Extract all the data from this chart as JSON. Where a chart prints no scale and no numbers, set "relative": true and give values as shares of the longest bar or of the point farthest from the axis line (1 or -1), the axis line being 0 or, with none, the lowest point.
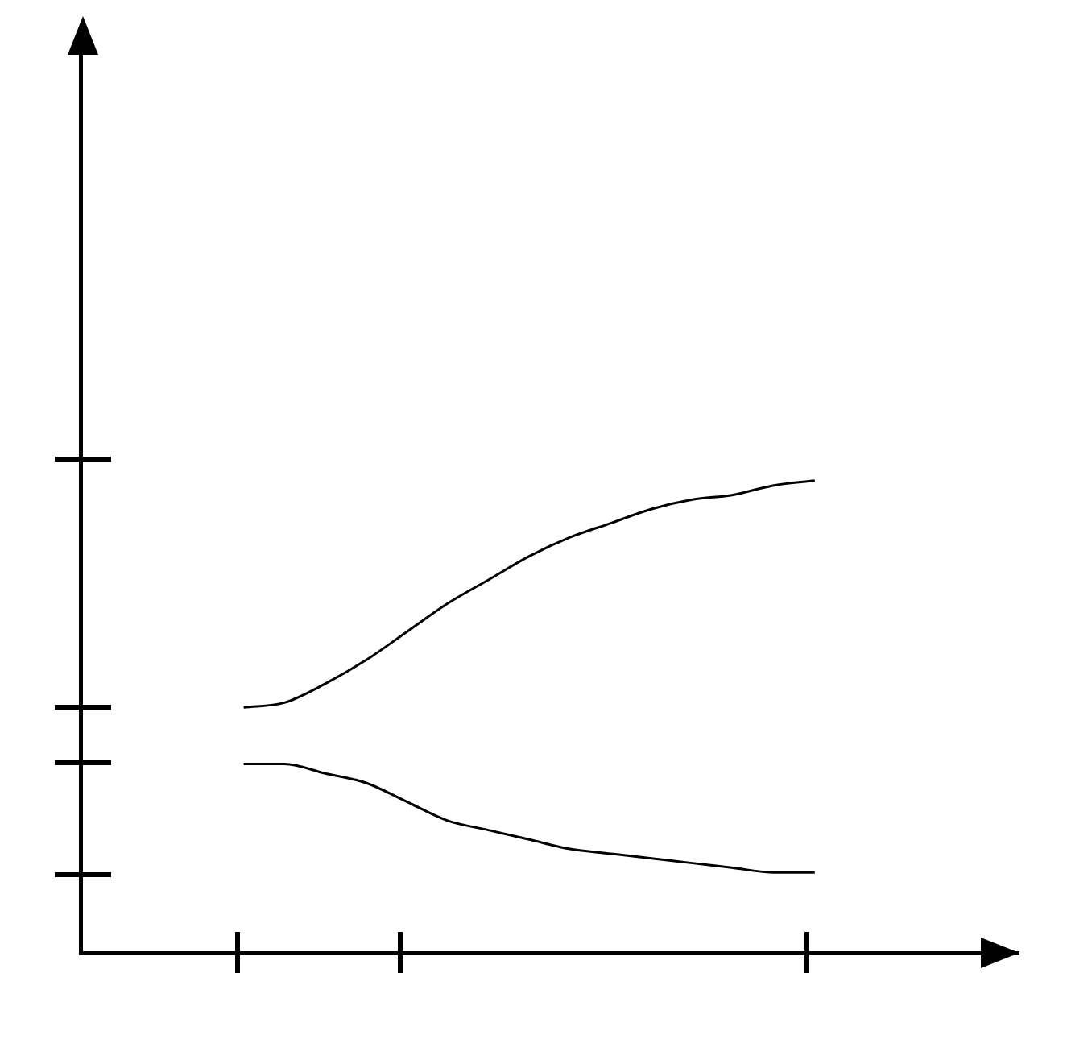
{
  "chart_data": {
    "type": "line",
    "relative": true,
    "marker": "none",
    "categories": [
      null,
      null,
      null,
      null,
      null,
      null,
      null,
      null,
      null,
      null,
      null,
      null,
      null,
      null,
      null,
      null,
      null,
      null,
      null,
      null,
      null,
      null,
      null,
      null
    ],
    "series": [
      {
        "color": "#000000",
        "values": [
          null,
          null,
          null,
          null,
          0.52,
          0.53,
          0.57,
          0.62,
          0.68,
          0.74,
          0.79,
          0.84,
          0.88,
          0.91,
          0.94,
          0.96,
          0.97,
          0.99,
          1,
          null,
          null,
          null,
          null,
          null
        ]
      },
      {
        "color": "#000000",
        "values": [
          null,
          null,
          null,
          null,
          0.4,
          0.4,
          0.38,
          0.36,
          0.32,
          0.28,
          0.26,
          0.24,
          0.22,
          0.21,
          0.2,
          0.19,
          0.18,
          0.17,
          0.17,
          null,
          null,
          null,
          null,
          null
        ]
      }
    ]
  }
}
